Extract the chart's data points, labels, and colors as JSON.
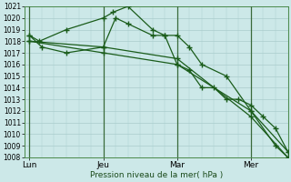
{
  "xlabel": "Pression niveau de la mer( hPa )",
  "ylim": [
    1008,
    1021
  ],
  "yticks": [
    1008,
    1009,
    1010,
    1011,
    1012,
    1013,
    1014,
    1015,
    1016,
    1017,
    1018,
    1019,
    1020,
    1021
  ],
  "xtick_labels": [
    "Lun",
    "Jeu",
    "Mar",
    "Mer"
  ],
  "xtick_positions": [
    0,
    3,
    6,
    9
  ],
  "xlim": [
    -0.2,
    10.5
  ],
  "bg_color": "#cce8e8",
  "line_color": "#1a5c1a",
  "grid_color": "#aacccc",
  "vline_color": "#3a6a3a",
  "lines": [
    {
      "x": [
        0,
        0.4,
        1.5,
        3.0,
        3.4,
        4.0,
        5.0,
        5.5,
        6.0,
        6.5,
        7.0,
        8.0,
        9.0,
        10.0,
        10.5
      ],
      "y": [
        1018.5,
        1018.0,
        1019.0,
        1020.0,
        1020.5,
        1021.0,
        1019.0,
        1018.5,
        1018.5,
        1017.5,
        1016.0,
        1015.0,
        1012.0,
        1009.0,
        1008.0
      ],
      "marker": "+",
      "ms": 4,
      "lw": 0.9
    },
    {
      "x": [
        0,
        0.5,
        1.5,
        3.0,
        3.5,
        4.0,
        5.0,
        5.5,
        6.0,
        6.5,
        7.0,
        7.5,
        8.0,
        8.5,
        9.0,
        9.5,
        10.0,
        10.5
      ],
      "y": [
        1018.5,
        1017.5,
        1017.0,
        1017.5,
        1020.0,
        1019.5,
        1018.5,
        1018.5,
        1016.0,
        1015.5,
        1014.0,
        1014.0,
        1013.0,
        1013.0,
        1012.5,
        1011.5,
        1010.5,
        1008.5
      ],
      "marker": "+",
      "ms": 4,
      "lw": 0.9
    },
    {
      "x": [
        0,
        3.0,
        6.0,
        9.0,
        10.5
      ],
      "y": [
        1018.0,
        1017.0,
        1016.0,
        1012.0,
        1008.5
      ],
      "marker": "+",
      "ms": 4,
      "lw": 0.9
    },
    {
      "x": [
        0,
        3.0,
        6.0,
        9.0,
        10.5
      ],
      "y": [
        1018.0,
        1017.5,
        1016.5,
        1011.5,
        1008.0
      ],
      "marker": "+",
      "ms": 4,
      "lw": 0.9
    }
  ]
}
